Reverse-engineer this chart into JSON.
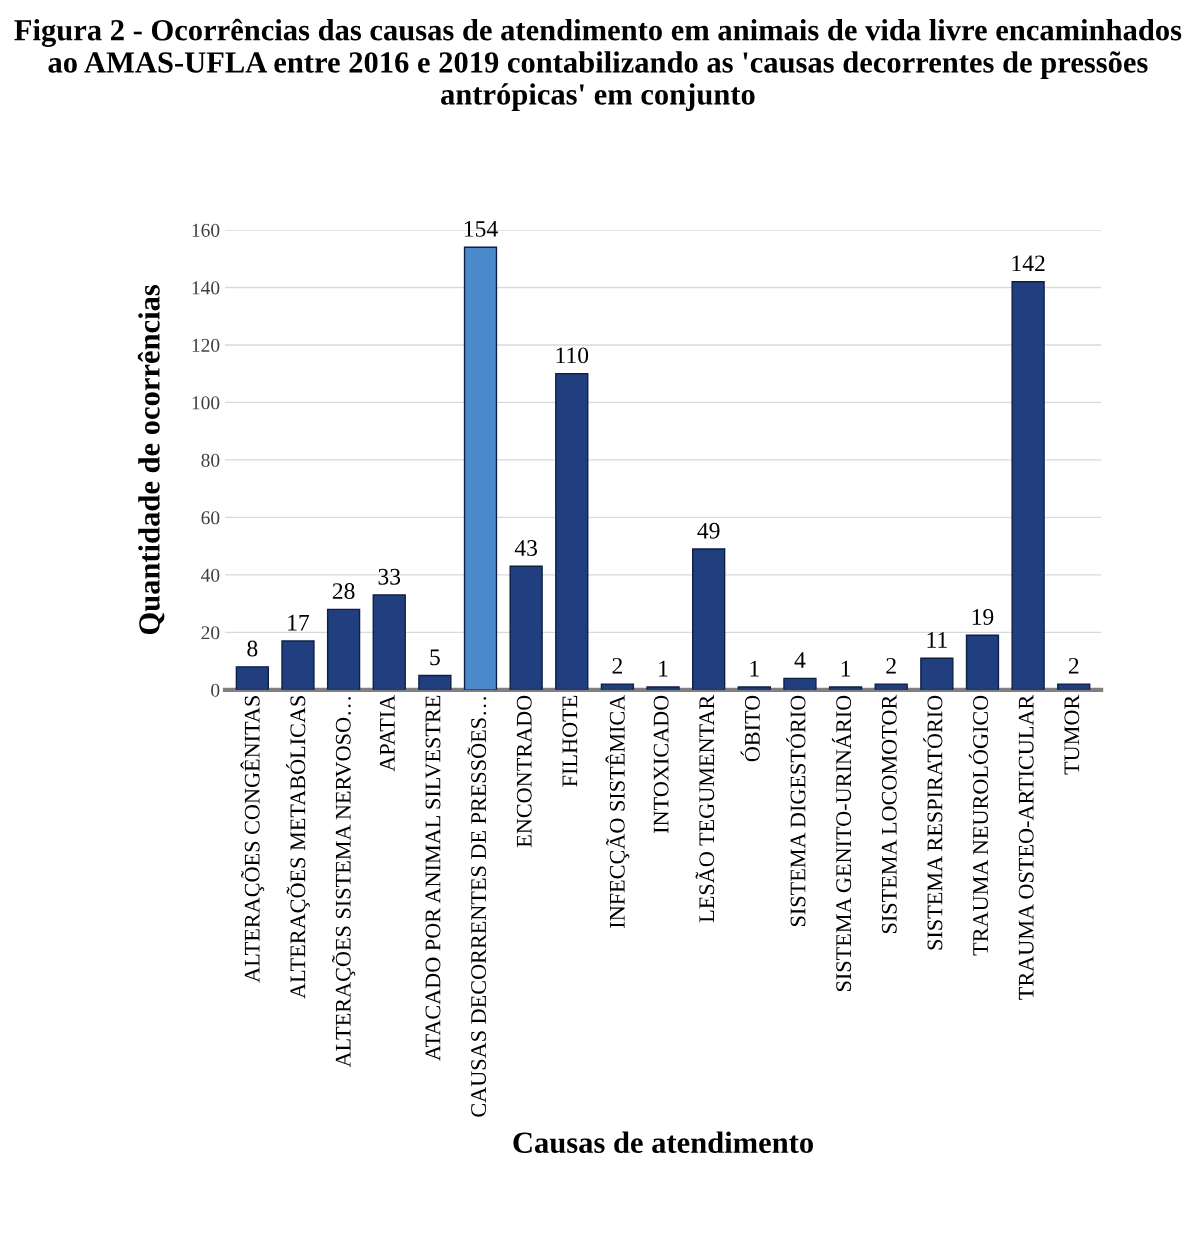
{
  "chart_data": {
    "type": "bar",
    "title": "Figura 2 - Ocorrências das causas de atendimento em animais de vida livre encaminhados ao AMAS-UFLA entre 2016 e 2019 contabilizando as 'causas decorrentes de pressões antrópicas' em conjunto",
    "xlabel": "Causas de atendimento",
    "ylabel": "Quantidade de ocorrências",
    "categories": [
      "ALTERAÇÕES CONGÊNITAS",
      "ALTERAÇÕES METABÓLICAS",
      "ALTERAÇÕES SISTEMA NERVOSO…",
      "APATIA",
      "ATACADO POR ANIMAL SILVESTRE",
      "CAUSAS DECORRENTES DE PRESSÕES…",
      "ENCONTRADO",
      "FILHOTE",
      "INFECÇÃO SISTÊMICA",
      "INTOXICADO",
      "LESÃO TEGUMENTAR",
      "ÓBITO",
      "SISTEMA DIGESTÓRIO",
      "SISTEMA GENITO-URINÁRIO",
      "SISTEMA LOCOMOTOR",
      "SISTEMA RESPIRATÓRIO",
      "TRAUMA NEUROLÓGICO",
      "TRAUMA OSTEO-ARTICULAR",
      "TUMOR"
    ],
    "values": [
      8,
      17,
      28,
      33,
      5,
      154,
      43,
      110,
      2,
      1,
      49,
      1,
      4,
      1,
      2,
      11,
      19,
      142,
      2
    ],
    "colors": [
      "#213f7e",
      "#213f7e",
      "#213f7e",
      "#213f7e",
      "#213f7e",
      "#4a8acb",
      "#213f7e",
      "#213f7e",
      "#213f7e",
      "#213f7e",
      "#213f7e",
      "#213f7e",
      "#213f7e",
      "#213f7e",
      "#213f7e",
      "#213f7e",
      "#213f7e",
      "#213f7e",
      "#213f7e"
    ],
    "ylim": [
      0,
      160
    ],
    "yticks": [
      0,
      20,
      40,
      60,
      80,
      100,
      120,
      140,
      160
    ],
    "grid": "y",
    "data_labels": true
  }
}
